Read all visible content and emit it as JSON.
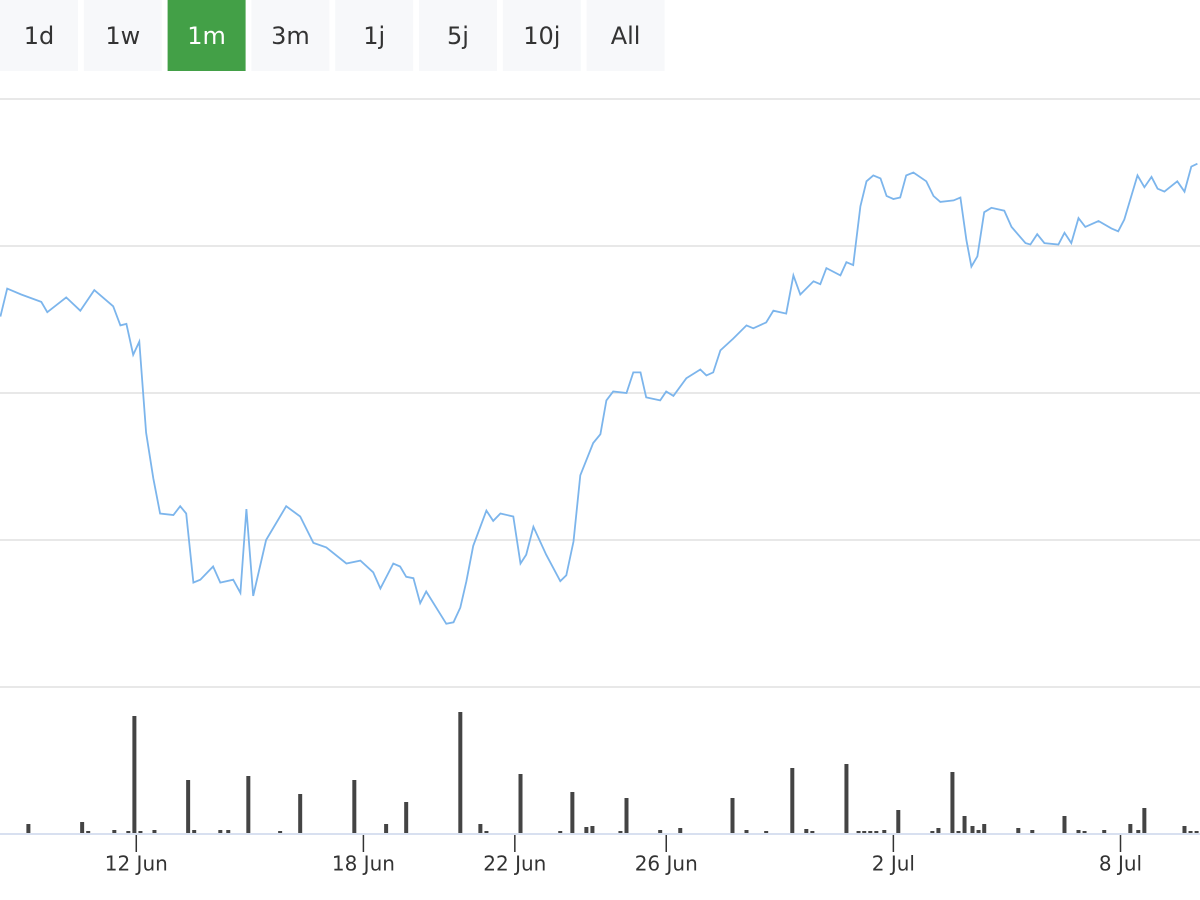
{
  "buttons": {
    "items": [
      "1d",
      "1w",
      "1m",
      "3m",
      "1j",
      "5j",
      "10j",
      "All"
    ],
    "selected": 2
  },
  "chart_data": [
    {
      "type": "line",
      "x": [
        -3.59,
        -3.41,
        -3.04,
        -2.51,
        -2.35,
        -1.85,
        -1.48,
        -1.11,
        -0.61,
        -0.42,
        -0.26,
        -0.08,
        0.08,
        0.26,
        0.45,
        0.63,
        0.98,
        1.16,
        1.32,
        1.51,
        1.69,
        2.03,
        2.22,
        2.56,
        2.75,
        2.91,
        3.09,
        3.43,
        3.96,
        4.33,
        4.68,
        5.02,
        5.55,
        5.92,
        6.26,
        6.45,
        6.79,
        6.97,
        7.13,
        7.32,
        7.5,
        7.66,
        8.19,
        8.38,
        8.56,
        8.72,
        8.9,
        9.25,
        9.43,
        9.62,
        9.96,
        10.15,
        10.3,
        10.49,
        10.83,
        11.2,
        11.36,
        11.55,
        11.73,
        12.07,
        12.26,
        12.42,
        12.6,
        12.95,
        13.13,
        13.32,
        13.47,
        13.84,
        14.0,
        14.19,
        14.53,
        14.9,
        15.06,
        15.24,
        15.43,
        15.77,
        16.12,
        16.3,
        16.64,
        16.83,
        17.17,
        17.36,
        17.54,
        17.89,
        18.07,
        18.23,
        18.6,
        18.76,
        18.94,
        19.13,
        19.29,
        19.47,
        19.66,
        19.82,
        20.0,
        20.18,
        20.34,
        20.53,
        20.87,
        21.06,
        21.24,
        21.59,
        21.77,
        21.93,
        22.06,
        22.22,
        22.4,
        22.59,
        22.93,
        23.12,
        23.49,
        23.62,
        23.8,
        23.99,
        24.36,
        24.52,
        24.7,
        24.89,
        25.07,
        25.42,
        25.76,
        25.94,
        26.1,
        26.45,
        26.63,
        26.82,
        26.98,
        27.16,
        27.5,
        27.69,
        27.87,
        28.03
      ],
      "series": [
        {
          "color": "#7cb5ec",
          "values": [
            2.52,
            2.71,
            2.67,
            2.62,
            2.55,
            2.65,
            2.56,
            2.7,
            2.59,
            2.46,
            2.47,
            2.26,
            2.35,
            1.73,
            1.42,
            1.18,
            1.17,
            1.23,
            1.18,
            0.71,
            0.73,
            0.82,
            0.71,
            0.73,
            0.64,
            1.21,
            0.62,
            1.0,
            1.23,
            1.16,
            0.98,
            0.95,
            0.84,
            0.86,
            0.78,
            0.67,
            0.84,
            0.82,
            0.75,
            0.74,
            0.57,
            0.65,
            0.43,
            0.44,
            0.54,
            0.72,
            0.96,
            1.2,
            1.13,
            1.18,
            1.16,
            0.84,
            0.9,
            1.09,
            0.9,
            0.72,
            0.76,
            0.99,
            1.44,
            1.66,
            1.72,
            1.95,
            2.01,
            2.0,
            2.14,
            2.14,
            1.97,
            1.95,
            2.01,
            1.98,
            2.1,
            2.16,
            2.12,
            2.14,
            2.29,
            2.37,
            2.46,
            2.44,
            2.48,
            2.56,
            2.54,
            2.8,
            2.67,
            2.76,
            2.74,
            2.85,
            2.8,
            2.89,
            2.87,
            3.27,
            3.44,
            3.48,
            3.46,
            3.34,
            3.32,
            3.33,
            3.48,
            3.5,
            3.44,
            3.34,
            3.3,
            3.31,
            3.33,
            3.04,
            2.86,
            2.93,
            3.23,
            3.26,
            3.24,
            3.13,
            3.02,
            3.01,
            3.08,
            3.02,
            3.01,
            3.09,
            3.02,
            3.19,
            3.13,
            3.17,
            3.12,
            3.1,
            3.18,
            3.48,
            3.4,
            3.47,
            3.39,
            3.37,
            3.44,
            3.37,
            3.54,
            3.56
          ]
        }
      ],
      "xlim": [
        -3.6,
        28.1
      ],
      "xticks": [
        {
          "value": 0,
          "label": "12 Jun"
        },
        {
          "value": 6,
          "label": "18 Jun"
        },
        {
          "value": 10,
          "label": "22 Jun"
        },
        {
          "value": 14,
          "label": "26 Jun"
        },
        {
          "value": 20,
          "label": "2 Jul"
        },
        {
          "value": 26,
          "label": "8 Jul"
        }
      ],
      "ylim": [
        0,
        4
      ],
      "yticks": [
        0,
        1,
        2,
        3,
        4
      ],
      "grid": true
    },
    {
      "type": "bar",
      "color": "#444444",
      "x": [
        -2.85,
        -1.43,
        -1.27,
        -0.58,
        -0.21,
        -0.05,
        0.11,
        0.48,
        1.37,
        1.53,
        2.22,
        2.43,
        2.96,
        3.8,
        4.33,
        5.76,
        6.6,
        7.13,
        8.56,
        9.09,
        9.25,
        10.15,
        11.2,
        11.52,
        11.89,
        12.05,
        12.79,
        12.95,
        13.84,
        14.37,
        15.75,
        16.12,
        16.64,
        17.33,
        17.7,
        17.86,
        18.76,
        19.08,
        19.23,
        19.39,
        19.55,
        19.76,
        20.13,
        21.03,
        21.19,
        21.56,
        21.72,
        21.88,
        22.09,
        22.25,
        22.4,
        23.3,
        23.67,
        24.52,
        24.89,
        25.05,
        25.57,
        26.26,
        26.47,
        26.63,
        27.69,
        27.85,
        28.01
      ],
      "values": [
        9,
        11,
        2,
        3,
        2,
        117,
        2,
        3,
        53,
        3,
        3,
        3,
        57,
        2,
        39,
        53,
        9,
        31,
        121,
        9,
        2,
        59,
        2,
        41,
        6,
        7,
        2,
        35,
        3,
        5,
        35,
        3,
        2,
        65,
        4,
        2,
        69,
        2,
        2,
        2,
        2,
        3,
        23,
        2,
        5,
        61,
        2,
        17,
        7,
        3,
        9,
        5,
        3,
        17,
        3,
        2,
        3,
        9,
        3,
        25,
        7,
        2,
        2
      ],
      "xlim": [
        -3.6,
        28.1
      ],
      "ylim": [
        0,
        146
      ]
    }
  ]
}
